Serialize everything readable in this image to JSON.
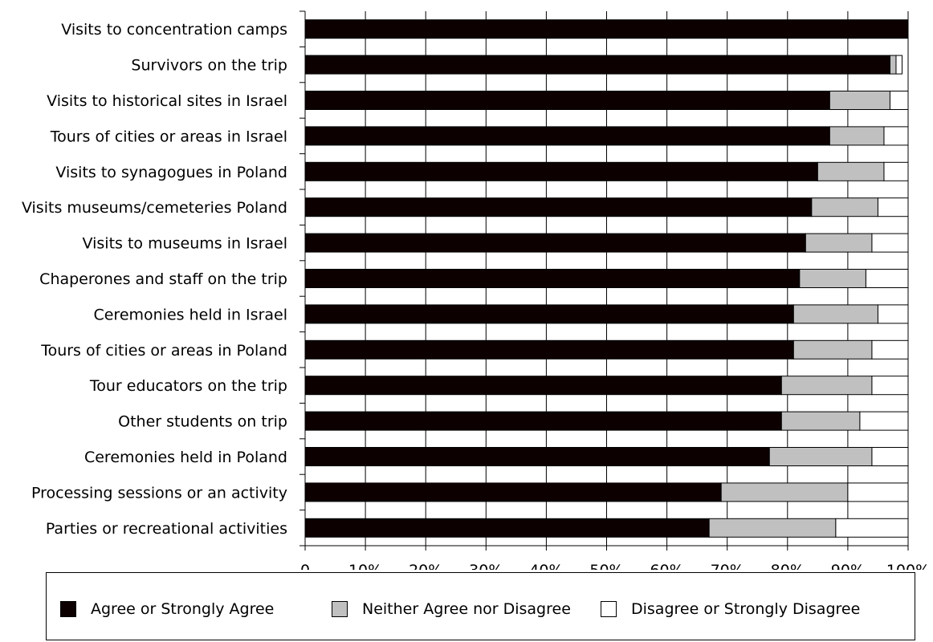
{
  "chart_data": {
    "type": "bar",
    "orientation": "horizontal",
    "stacked": true,
    "categories": [
      "Visits to concentration camps",
      "Survivors on the trip",
      "Visits to historical sites in Israel",
      "Tours of cities or areas in Israel",
      "Visits to synagogues in Poland",
      "Visits museums/cemeteries Poland",
      "Visits to museums in Israel",
      "Chaperones and staff on the trip",
      "Ceremonies held in Israel",
      "Tours of cities or areas in Poland",
      "Tour educators on the trip",
      "Other students on trip",
      "Ceremonies held in Poland",
      "Processing sessions or an activity",
      "Parties or recreational activities"
    ],
    "series": [
      {
        "name": "Agree or Strongly Agree",
        "color": "#0d0000",
        "values": [
          100,
          97,
          87,
          87,
          85,
          84,
          83,
          82,
          81,
          81,
          79,
          79,
          77,
          69,
          67
        ]
      },
      {
        "name": "Neither Agree nor Disagree",
        "color": "#c0c0c0",
        "values": [
          0,
          1,
          10,
          9,
          11,
          11,
          11,
          11,
          14,
          13,
          15,
          13,
          17,
          21,
          21
        ]
      },
      {
        "name": "Disagree or Strongly Disagree",
        "color": "#ffffff",
        "values": [
          0,
          1,
          3,
          4,
          4,
          5,
          6,
          7,
          5,
          6,
          6,
          8,
          6,
          10,
          12
        ]
      }
    ],
    "xlim": [
      0,
      100
    ],
    "x_ticks": [
      "0",
      "10%",
      "20%",
      "30%",
      "40%",
      "50%",
      "60%",
      "70%",
      "80%",
      "90%",
      "100%"
    ],
    "grid": "vertical",
    "legend_position": "bottom"
  }
}
